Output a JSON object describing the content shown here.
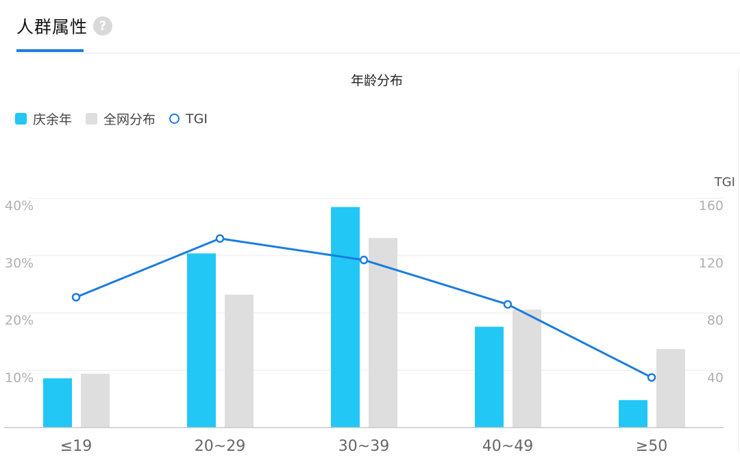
{
  "tab": {
    "label": "人群属性",
    "help_icon": "question-icon"
  },
  "colors": {
    "accent": "#1a7be0",
    "brand_series": "#22c7f5",
    "population_series": "#dedede",
    "tgi_line": "#1a7be0"
  },
  "chart_data": {
    "type": "bar",
    "title": "年龄分布",
    "categories": [
      "≤19",
      "20~29",
      "30~39",
      "40~49",
      "≥50"
    ],
    "series": [
      {
        "name": "庆余年",
        "kind": "bar",
        "axis": "left",
        "values": [
          8.6,
          30.4,
          38.5,
          17.6,
          4.8
        ]
      },
      {
        "name": "全网分布",
        "kind": "bar",
        "axis": "left",
        "values": [
          9.4,
          23.2,
          33.1,
          20.6,
          13.7
        ]
      },
      {
        "name": "TGI",
        "kind": "line",
        "axis": "right",
        "values": [
          91,
          132,
          117,
          86,
          35
        ]
      }
    ],
    "left_axis": {
      "ticks": [
        "10%",
        "20%",
        "30%",
        "40%"
      ],
      "tick_values": [
        10,
        20,
        30,
        40
      ],
      "ylim": [
        0,
        40
      ]
    },
    "right_axis": {
      "label": "TGI",
      "ticks": [
        "40",
        "80",
        "120",
        "160"
      ],
      "tick_values": [
        40,
        80,
        120,
        160
      ],
      "ylim": [
        0,
        160
      ]
    },
    "legend_position": "top-left",
    "grid": true
  }
}
